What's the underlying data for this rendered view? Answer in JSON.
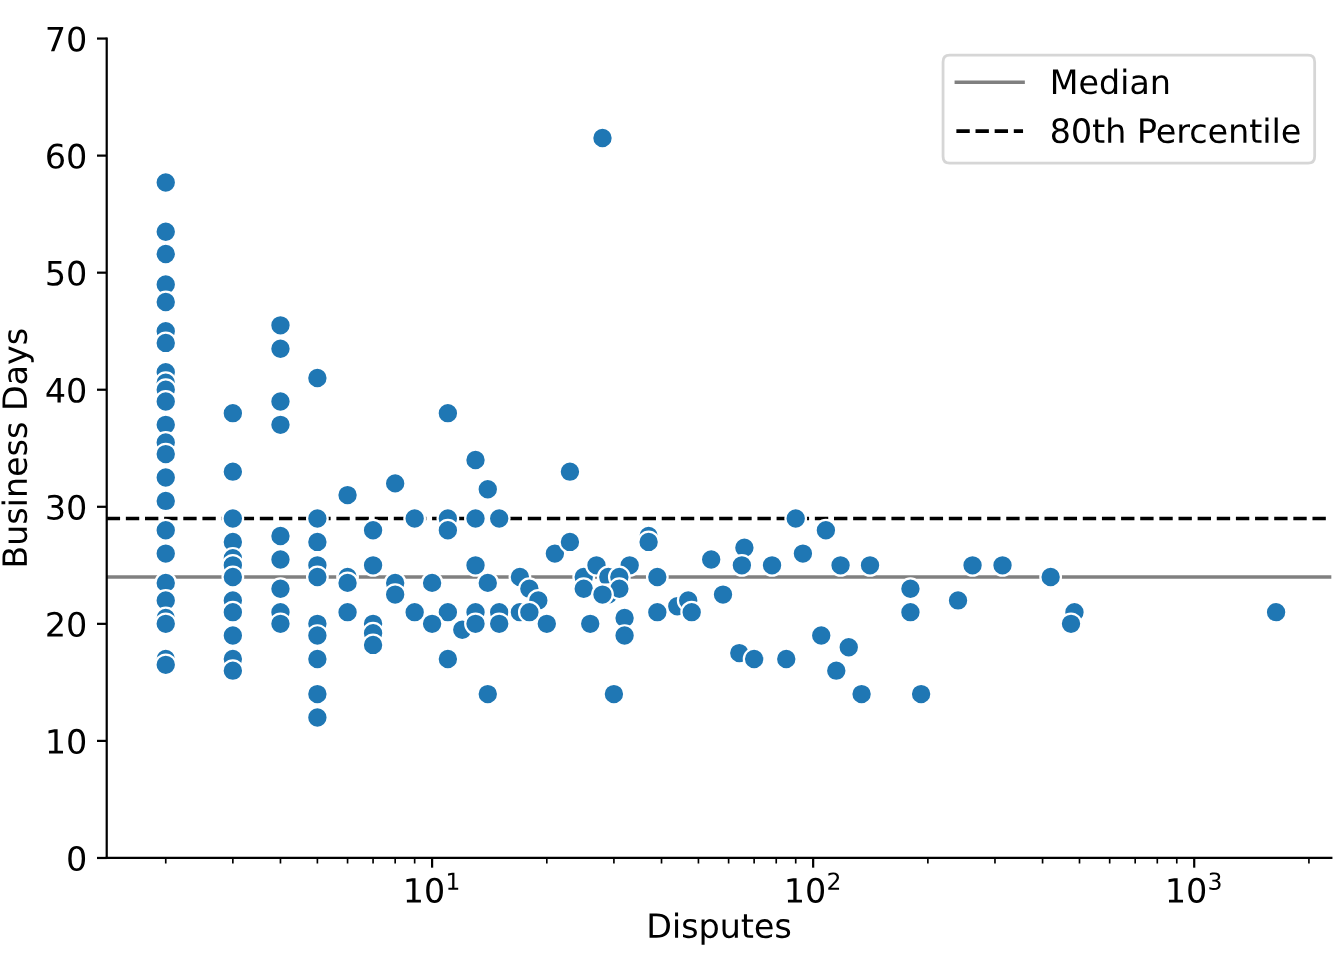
{
  "chart_data": {
    "type": "scatter",
    "xlabel": "Disputes",
    "ylabel": "Business Days",
    "log": "x",
    "xlim": [
      1.4,
      2290
    ],
    "xticks": [
      {
        "value": 10,
        "label": "10$^{1}$"
      },
      {
        "value": 100,
        "label": "10$^{2}$"
      },
      {
        "value": 1000,
        "label": "10$^{3}$"
      }
    ],
    "ylim": [
      0,
      70
    ],
    "yticks": [
      0,
      10,
      20,
      30,
      40,
      50,
      60,
      70
    ],
    "grid": false,
    "legend": "top right",
    "marker": "circle",
    "ref_lines": [
      {
        "axis": "y",
        "value": 24,
        "label": "Median",
        "color": "#808080",
        "line_style": "solid"
      },
      {
        "axis": "y",
        "value": 29,
        "label": "80th Percentile",
        "color": "#000000",
        "line_style": "dashed"
      }
    ],
    "series": [
      {
        "color": "#1f77b4",
        "x": [
          2,
          2,
          2,
          2,
          2,
          2,
          2,
          2,
          2,
          2,
          2,
          2,
          2,
          2,
          2,
          2,
          2,
          2,
          2,
          2,
          2,
          2,
          2,
          2,
          3,
          3,
          3,
          3,
          3,
          3,
          3,
          3,
          3,
          3,
          3,
          3,
          4,
          4,
          4,
          4,
          4,
          4,
          4,
          4,
          4,
          5,
          5,
          5,
          5,
          5,
          5,
          5,
          5,
          5,
          5,
          6,
          8,
          11,
          13,
          14,
          23,
          9,
          11,
          13,
          15,
          7,
          11,
          6,
          6,
          7,
          8,
          8,
          10,
          13,
          14,
          17,
          18,
          19,
          21,
          23,
          25,
          25,
          27,
          29,
          29,
          6,
          9,
          11,
          13,
          15,
          17,
          7,
          7,
          7,
          10,
          12,
          13,
          15,
          20,
          26,
          18,
          11,
          14,
          30,
          28,
          90,
          108,
          37,
          37,
          66,
          94,
          54,
          33,
          65,
          78,
          118,
          141,
          31,
          39,
          31,
          28,
          180,
          58,
          44,
          47,
          48,
          39,
          32,
          32,
          105,
          124,
          64,
          70,
          85,
          115,
          134,
          192,
          262,
          314,
          420,
          180,
          240,
          485,
          475,
          1640
        ],
        "values": [
          57.7,
          53.5,
          51.6,
          49,
          47.5,
          45,
          44,
          41.5,
          40.6,
          40,
          39,
          37,
          35.5,
          34.5,
          32.5,
          30.5,
          28,
          26,
          23.5,
          22,
          20.5,
          20,
          17,
          16.5,
          38,
          33,
          29,
          27,
          25.6,
          25,
          24,
          22,
          21,
          19,
          17,
          16,
          45.5,
          43.5,
          39,
          37,
          27.5,
          25.5,
          23,
          21,
          20,
          41,
          29,
          27,
          25,
          24,
          20,
          19,
          17,
          14,
          12,
          31,
          32,
          38,
          34,
          31.5,
          33,
          29,
          29,
          29,
          29,
          28,
          28,
          24,
          23.5,
          25,
          23.5,
          22.5,
          23.5,
          25,
          23.5,
          24,
          23,
          22,
          26,
          27,
          24,
          23,
          25,
          24,
          22.5,
          21,
          21,
          21,
          21,
          21,
          21,
          20,
          19.2,
          18.2,
          20,
          19.5,
          20,
          20,
          20,
          20,
          21,
          17,
          14,
          14,
          61.5,
          29,
          28,
          27.5,
          27,
          26.5,
          26,
          25.5,
          25,
          25,
          25,
          25,
          25,
          24,
          24,
          23,
          22.5,
          23,
          22.5,
          21.5,
          22,
          21,
          21,
          20.5,
          19,
          19,
          18,
          17.5,
          17,
          17,
          16,
          14,
          14,
          25,
          25,
          24,
          21,
          22,
          21,
          20,
          21
        ]
      }
    ]
  }
}
